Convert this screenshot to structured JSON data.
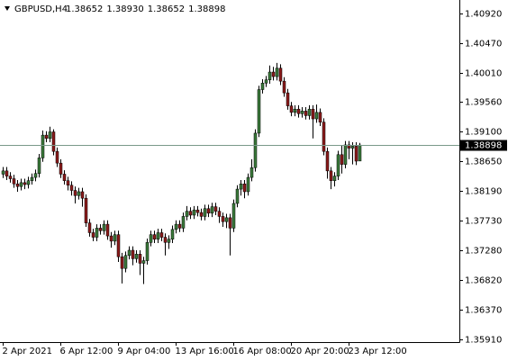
{
  "chart_data": {
    "type": "candlestick",
    "symbol": "GBPUSD,H4",
    "header_values": [
      "1.38652",
      "1.38930",
      "1.38652",
      "1.38898"
    ],
    "open": [
      1.3845,
      1.385,
      1.3842,
      1.3838,
      1.383,
      1.3826,
      1.3832,
      1.3829,
      1.3835,
      1.384,
      1.3846,
      1.387,
      1.3905,
      1.39,
      1.391,
      1.388,
      1.3862,
      1.3845,
      1.3835,
      1.3828,
      1.382,
      1.3812,
      1.3818,
      1.3808,
      1.377,
      1.3755,
      1.3748,
      1.3762,
      1.3758,
      1.3768,
      1.375,
      1.3742,
      1.3752,
      1.3718,
      1.37,
      1.372,
      1.3728,
      1.3715,
      1.3722,
      1.3708,
      1.3712,
      1.374,
      1.3752,
      1.3745,
      1.3755,
      1.3748,
      1.374,
      1.3745,
      1.376,
      1.3768,
      1.3762,
      1.378,
      1.3788,
      1.3782,
      1.379,
      1.3786,
      1.378,
      1.3792,
      1.3785,
      1.3795,
      1.3788,
      1.378,
      1.3772,
      1.3778,
      1.3762,
      1.38,
      1.3822,
      1.383,
      1.3818,
      1.384,
      1.3855,
      1.3908,
      1.3975,
      1.3985,
      1.399,
      1.4002,
      1.3995,
      1.4008,
      1.3988,
      1.397,
      1.395,
      1.394,
      1.3945,
      1.3938,
      1.3942,
      1.3935,
      1.3945,
      1.393,
      1.394,
      1.3925,
      1.388,
      1.385,
      1.3835,
      1.3842,
      1.3875,
      1.386,
      1.389,
      1.3885,
      1.3888,
      1.38652
    ],
    "high": [
      1.3856,
      1.3856,
      1.3848,
      1.3844,
      1.3836,
      1.3838,
      1.3838,
      1.3841,
      1.3846,
      1.3852,
      1.3876,
      1.3912,
      1.3911,
      1.3918,
      1.3914,
      1.3886,
      1.3868,
      1.3851,
      1.3841,
      1.3834,
      1.3826,
      1.3824,
      1.3824,
      1.3814,
      1.3776,
      1.3761,
      1.3768,
      1.3768,
      1.3774,
      1.3774,
      1.3756,
      1.3758,
      1.3758,
      1.3724,
      1.3726,
      1.3734,
      1.3734,
      1.3728,
      1.3728,
      1.3718,
      1.3746,
      1.3758,
      1.3758,
      1.3761,
      1.3761,
      1.3754,
      1.3751,
      1.3766,
      1.3774,
      1.3774,
      1.3786,
      1.3796,
      1.3794,
      1.3796,
      1.3796,
      1.3792,
      1.3798,
      1.3798,
      1.3801,
      1.3801,
      1.3794,
      1.3786,
      1.3784,
      1.3784,
      1.3806,
      1.3828,
      1.3836,
      1.3836,
      1.3846,
      1.3868,
      1.3914,
      1.3981,
      1.3991,
      1.3996,
      1.4012,
      1.401,
      1.4016,
      1.4014,
      1.3994,
      1.3976,
      1.3956,
      1.3951,
      1.3951,
      1.3948,
      1.3948,
      1.3951,
      1.3951,
      1.3952,
      1.3946,
      1.3931,
      1.3886,
      1.3856,
      1.3848,
      1.3881,
      1.389,
      1.3896,
      1.3896,
      1.3894,
      1.3894,
      1.3893
    ],
    "low": [
      1.3839,
      1.3836,
      1.3832,
      1.3824,
      1.3818,
      1.382,
      1.3822,
      1.3823,
      1.3829,
      1.3834,
      1.384,
      1.3864,
      1.3894,
      1.3894,
      1.3874,
      1.3856,
      1.3839,
      1.3829,
      1.382,
      1.3812,
      1.38,
      1.3806,
      1.3795,
      1.3764,
      1.3749,
      1.3742,
      1.3742,
      1.3752,
      1.3752,
      1.3744,
      1.3732,
      1.3736,
      1.371,
      1.3677,
      1.3694,
      1.3714,
      1.3705,
      1.3709,
      1.369,
      1.3676,
      1.3706,
      1.3734,
      1.3739,
      1.3739,
      1.3742,
      1.372,
      1.373,
      1.3739,
      1.3754,
      1.3756,
      1.3756,
      1.3774,
      1.3776,
      1.3776,
      1.378,
      1.3774,
      1.3774,
      1.3779,
      1.3779,
      1.3782,
      1.377,
      1.3764,
      1.3762,
      1.372,
      1.3756,
      1.3794,
      1.3812,
      1.3808,
      1.3812,
      1.3834,
      1.3849,
      1.3902,
      1.3969,
      1.3979,
      1.3984,
      1.3989,
      1.3989,
      1.3982,
      1.3964,
      1.3944,
      1.3934,
      1.3934,
      1.3932,
      1.3932,
      1.3929,
      1.3929,
      1.39,
      1.3924,
      1.3919,
      1.3874,
      1.3838,
      1.3822,
      1.3826,
      1.3836,
      1.3846,
      1.3854,
      1.3868,
      1.386,
      1.3859,
      1.38652
    ],
    "close": [
      1.385,
      1.3842,
      1.3838,
      1.383,
      1.3826,
      1.3832,
      1.3829,
      1.3835,
      1.384,
      1.3846,
      1.387,
      1.3905,
      1.39,
      1.391,
      1.388,
      1.3862,
      1.3845,
      1.3835,
      1.3828,
      1.382,
      1.3812,
      1.3818,
      1.3808,
      1.377,
      1.3755,
      1.3748,
      1.3762,
      1.3758,
      1.3768,
      1.375,
      1.3742,
      1.3752,
      1.3718,
      1.37,
      1.372,
      1.3728,
      1.3715,
      1.3722,
      1.3708,
      1.3712,
      1.374,
      1.3752,
      1.3745,
      1.3755,
      1.3748,
      1.374,
      1.3745,
      1.376,
      1.3768,
      1.3762,
      1.378,
      1.3788,
      1.3782,
      1.379,
      1.3786,
      1.378,
      1.3792,
      1.3785,
      1.3795,
      1.3788,
      1.378,
      1.3772,
      1.3778,
      1.3762,
      1.38,
      1.3822,
      1.383,
      1.3818,
      1.384,
      1.3855,
      1.3908,
      1.3975,
      1.3985,
      1.399,
      1.4002,
      1.3995,
      1.4008,
      1.3988,
      1.397,
      1.395,
      1.394,
      1.3945,
      1.3938,
      1.3942,
      1.3935,
      1.3945,
      1.393,
      1.394,
      1.3925,
      1.388,
      1.385,
      1.3835,
      1.3842,
      1.3875,
      1.386,
      1.389,
      1.3885,
      1.3888,
      1.3865,
      1.38898
    ],
    "up_color": "#3a7a3a",
    "down_color": "#8b1a1a",
    "ylim": [
      1.35868,
      1.411
    ],
    "yticks": [
      {
        "value": 1.4092,
        "label": "1.40920"
      },
      {
        "value": 1.4047,
        "label": "1.40470"
      },
      {
        "value": 1.4001,
        "label": "1.40010"
      },
      {
        "value": 1.3956,
        "label": "1.39560"
      },
      {
        "value": 1.391,
        "label": "1.39100"
      },
      {
        "value": 1.3865,
        "label": "1.38650"
      },
      {
        "value": 1.3819,
        "label": "1.38190"
      },
      {
        "value": 1.3773,
        "label": "1.37730"
      },
      {
        "value": 1.3728,
        "label": "1.37280"
      },
      {
        "value": 1.3682,
        "label": "1.36820"
      },
      {
        "value": 1.3637,
        "label": "1.36370"
      },
      {
        "value": 1.3591,
        "label": "1.35910"
      }
    ],
    "xticks": [
      {
        "value": 0,
        "label": "2 Apr 2021"
      },
      {
        "value": 16,
        "label": "6 Apr 12:00"
      },
      {
        "value": 32,
        "label": "9 Apr 04:00"
      },
      {
        "value": 48,
        "label": "13 Apr 16:00"
      },
      {
        "value": 64,
        "label": "16 Apr 08:00"
      },
      {
        "value": 80,
        "label": "20 Apr 20:00"
      },
      {
        "value": 96,
        "label": "23 Apr 12:00"
      }
    ],
    "current_price": {
      "value": 1.38898,
      "label": "1.38898"
    },
    "price_line_color": "#7a9a8a"
  }
}
